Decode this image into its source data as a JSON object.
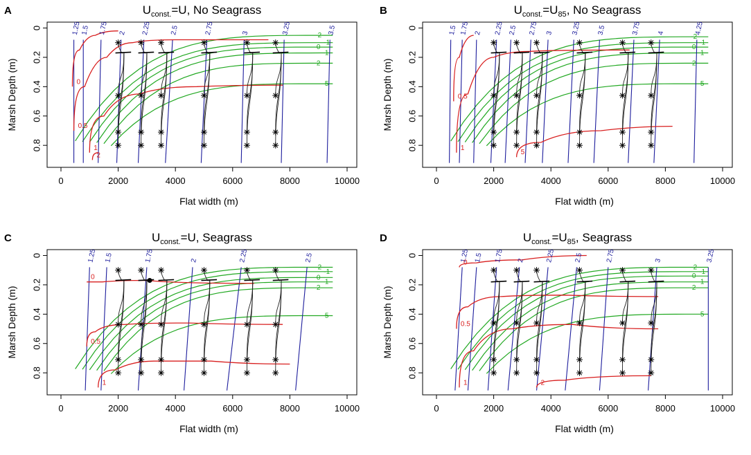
{
  "chart_data": [
    {
      "type": "line",
      "panel_letter": "A",
      "title_main": "U",
      "title_sub": "const.",
      "title_value": "=U",
      "title_value_sub": "",
      "title_overline": true,
      "title_suffix": ", No Seagrass",
      "xlabel": "Flat width (m)",
      "ylabel": "Marsh Depth (m)",
      "xlim": [
        0,
        10000
      ],
      "ylim": [
        0.9,
        0
      ],
      "xticks": [
        "0",
        "2000",
        "4000",
        "6000",
        "8000",
        "10000"
      ],
      "yticks": [
        "0",
        "0.2",
        "0.4",
        "0.6",
        "0.8"
      ],
      "xtick_values": [
        0,
        2000,
        4000,
        6000,
        8000,
        10000
      ],
      "ytick_values": [
        0,
        0.2,
        0.4,
        0.6,
        0.8
      ],
      "blue_contours": [
        {
          "label": "1.25",
          "top": 450,
          "bottom": 450
        },
        {
          "label": "1.5",
          "top": 780,
          "bottom": 780
        },
        {
          "label": "1.75",
          "top": 1400,
          "bottom": 1300
        },
        {
          "label": "2",
          "top": 2100,
          "bottom": 1950
        },
        {
          "label": "2.25",
          "top": 2900,
          "bottom": 2700
        },
        {
          "label": "2.5",
          "top": 3900,
          "bottom": 3650
        },
        {
          "label": "2.75",
          "top": 5100,
          "bottom": 4900
        },
        {
          "label": "3",
          "top": 6400,
          "bottom": 6300
        },
        {
          "label": "3.25",
          "top": 7800,
          "bottom": 7700
        },
        {
          "label": "3.5",
          "top": 9400,
          "bottom": 9300
        }
      ],
      "green_contours": [
        {
          "label": "-2",
          "depth": 0.05
        },
        {
          "label": "-1",
          "depth": 0.1
        },
        {
          "label": "0",
          "depth": 0.13
        },
        {
          "label": "1",
          "depth": 0.17
        },
        {
          "label": "2",
          "depth": 0.24
        },
        {
          "label": "5",
          "depth": 0.38
        }
      ],
      "red_contours": [
        {
          "label": "0",
          "points": [
            [
              400,
              0.4
            ],
            [
              900,
              0.15
            ],
            [
              1500,
              0.05
            ],
            [
              2500,
              0.02
            ]
          ]
        },
        {
          "label": "0.5",
          "points": [
            [
              450,
              0.7
            ],
            [
              1200,
              0.4
            ],
            [
              2000,
              0.2
            ],
            [
              3000,
              0.1
            ],
            [
              5000,
              0.08
            ],
            [
              9500,
              0.08
            ]
          ]
        },
        {
          "label": "1",
          "points": [
            [
              1000,
              0.85
            ],
            [
              2000,
              0.6
            ],
            [
              3500,
              0.45
            ],
            [
              6000,
              0.4
            ],
            [
              9500,
              0.39
            ]
          ]
        },
        {
          "label": "2",
          "points": [
            [
              1100,
              0.9
            ],
            [
              1500,
              0.85
            ]
          ]
        }
      ],
      "markers_x": [
        2000,
        2800,
        3500,
        5000,
        6500,
        7500
      ],
      "markers_y": [
        0.1,
        0.46,
        0.71,
        0.8
      ],
      "convergence_depth": 0.17,
      "highlight_point": null
    },
    {
      "type": "line",
      "panel_letter": "B",
      "title_main": "U",
      "title_sub": "const.",
      "title_value": "=U",
      "title_value_sub": "85",
      "title_overline": false,
      "title_suffix": ", No Seagrass",
      "xlabel": "Flat width (m)",
      "ylabel": "Marsh Depth (m)",
      "xlim": [
        0,
        10000
      ],
      "ylim": [
        0.9,
        0
      ],
      "xticks": [
        "0",
        "2000",
        "4000",
        "6000",
        "8000",
        "10000"
      ],
      "yticks": [
        "0",
        "0.2",
        "0.4",
        "0.6",
        "0.8"
      ],
      "xtick_values": [
        0,
        2000,
        4000,
        6000,
        8000,
        10000
      ],
      "ytick_values": [
        0,
        0.2,
        0.4,
        0.6,
        0.8
      ],
      "blue_contours": [
        {
          "label": "1.5",
          "top": 500,
          "bottom": 450
        },
        {
          "label": "1.75",
          "top": 900,
          "bottom": 800
        },
        {
          "label": "2",
          "top": 1400,
          "bottom": 1300
        },
        {
          "label": "2.25",
          "top": 2100,
          "bottom": 1900
        },
        {
          "label": "2.5",
          "top": 2600,
          "bottom": 2400
        },
        {
          "label": "2.75",
          "top": 3300,
          "bottom": 3100
        },
        {
          "label": "3",
          "top": 3900,
          "bottom": 3700
        },
        {
          "label": "3.25",
          "top": 4800,
          "bottom": 4600
        },
        {
          "label": "3.5",
          "top": 5700,
          "bottom": 5500
        },
        {
          "label": "3.75",
          "top": 6900,
          "bottom": 6700
        },
        {
          "label": "4",
          "top": 7800,
          "bottom": 7600
        },
        {
          "label": "4.25",
          "top": 9100,
          "bottom": 9000
        }
      ],
      "green_contours": [
        {
          "label": "-2",
          "depth": 0.06
        },
        {
          "label": "-1",
          "depth": 0.1
        },
        {
          "label": "0",
          "depth": 0.13
        },
        {
          "label": "1",
          "depth": 0.17
        },
        {
          "label": "2",
          "depth": 0.24
        },
        {
          "label": "5",
          "depth": 0.38
        }
      ],
      "red_contours": [
        {
          "label": "0.5",
          "points": [
            [
              600,
              0.5
            ],
            [
              1000,
              0.2
            ],
            [
              1600,
              0.05
            ]
          ]
        },
        {
          "label": "1",
          "points": [
            [
              700,
              0.85
            ],
            [
              1500,
              0.45
            ],
            [
              2500,
              0.2
            ],
            [
              4000,
              0.16
            ],
            [
              9500,
              0.15
            ]
          ]
        },
        {
          "label": "5",
          "points": [
            [
              2800,
              0.88
            ],
            [
              4500,
              0.78
            ],
            [
              7000,
              0.7
            ],
            [
              9500,
              0.67
            ]
          ]
        }
      ],
      "markers_x": [
        2000,
        2800,
        3500,
        5000,
        6500,
        7500
      ],
      "markers_y": [
        0.1,
        0.46,
        0.71,
        0.8
      ],
      "convergence_depth": 0.17,
      "highlight_point": null
    },
    {
      "type": "line",
      "panel_letter": "C",
      "title_main": "U",
      "title_sub": "const.",
      "title_value": "=U",
      "title_value_sub": "",
      "title_overline": true,
      "title_suffix": ", Seagrass",
      "xlabel": "Flat width (m)",
      "ylabel": "Marsh Depth (m)",
      "xlim": [
        0,
        10000
      ],
      "ylim": [
        0.9,
        0
      ],
      "xticks": [
        "0",
        "2000",
        "4000",
        "6000",
        "8000",
        "10000"
      ],
      "yticks": [
        "0",
        "0.2",
        "0.4",
        "0.6",
        "0.8"
      ],
      "xtick_values": [
        0,
        2000,
        4000,
        6000,
        8000,
        10000
      ],
      "ytick_values": [
        0,
        0.2,
        0.4,
        0.6,
        0.8
      ],
      "blue_contours": [
        {
          "label": "1.25",
          "top": 1000,
          "bottom": 850
        },
        {
          "label": "1.5",
          "top": 1600,
          "bottom": 1400
        },
        {
          "label": "1.75",
          "top": 3000,
          "bottom": 2700
        },
        {
          "label": "2",
          "top": 4600,
          "bottom": 4300
        },
        {
          "label": "2.25",
          "top": 6300,
          "bottom": 5800
        },
        {
          "label": "2.5",
          "top": 8600,
          "bottom": 8200
        }
      ],
      "green_contours": [
        {
          "label": "-2",
          "depth": 0.08
        },
        {
          "label": "-1",
          "depth": 0.11
        },
        {
          "label": "0",
          "depth": 0.15
        },
        {
          "label": "1",
          "depth": 0.18
        },
        {
          "label": "2",
          "depth": 0.22
        },
        {
          "label": "5",
          "depth": 0.41
        }
      ],
      "red_contours": [
        {
          "label": "0",
          "points": [
            [
              900,
              0.18
            ],
            [
              2000,
              0.18
            ],
            [
              4000,
              0.17
            ],
            [
              9500,
              0.19
            ]
          ]
        },
        {
          "label": "0.5",
          "points": [
            [
              900,
              0.62
            ],
            [
              1500,
              0.52
            ],
            [
              3000,
              0.47
            ],
            [
              6000,
              0.46
            ],
            [
              9500,
              0.47
            ]
          ]
        },
        {
          "label": "1",
          "points": [
            [
              1300,
              0.9
            ],
            [
              2500,
              0.78
            ],
            [
              4000,
              0.72
            ],
            [
              6500,
              0.72
            ],
            [
              9500,
              0.74
            ]
          ]
        }
      ],
      "markers_x": [
        2000,
        2800,
        3500,
        5000,
        6500,
        7500
      ],
      "markers_y": [
        0.1,
        0.47,
        0.71,
        0.8
      ],
      "convergence_depth": 0.17,
      "highlight_point": [
        3100,
        0.17
      ]
    },
    {
      "type": "line",
      "panel_letter": "D",
      "title_main": "U",
      "title_sub": "const.",
      "title_value": "=U",
      "title_value_sub": "85",
      "title_overline": false,
      "title_suffix": ", Seagrass",
      "xlabel": "Flat width (m)",
      "ylabel": "Marsh Depth (m)",
      "xlim": [
        0,
        10000
      ],
      "ylim": [
        0.9,
        0
      ],
      "xticks": [
        "0",
        "2000",
        "4000",
        "6000",
        "8000",
        "10000"
      ],
      "yticks": [
        "0",
        "0.2",
        "0.4",
        "0.6",
        "0.8"
      ],
      "xtick_values": [
        0,
        2000,
        4000,
        6000,
        8000,
        10000
      ],
      "ytick_values": [
        0,
        0.2,
        0.4,
        0.6,
        0.8
      ],
      "blue_contours": [
        {
          "label": "1.25",
          "top": 900,
          "bottom": 650
        },
        {
          "label": "1.5",
          "top": 1400,
          "bottom": 1100
        },
        {
          "label": "1.75",
          "top": 2100,
          "bottom": 1800
        },
        {
          "label": "2",
          "top": 2900,
          "bottom": 2500
        },
        {
          "label": "2.25",
          "top": 3900,
          "bottom": 3500
        },
        {
          "label": "2.5",
          "top": 4900,
          "bottom": 4500
        },
        {
          "label": "2.75",
          "top": 6000,
          "bottom": 5700
        },
        {
          "label": "3",
          "top": 7700,
          "bottom": 7400
        },
        {
          "label": "3.25",
          "top": 9500,
          "bottom": 9500
        }
      ],
      "green_contours": [
        {
          "label": "-2",
          "depth": 0.08
        },
        {
          "label": "-1",
          "depth": 0.11
        },
        {
          "label": "0",
          "depth": 0.14
        },
        {
          "label": "1",
          "depth": 0.18
        },
        {
          "label": "2",
          "depth": 0.22
        },
        {
          "label": "5",
          "depth": 0.4
        }
      ],
      "red_contours": [
        {
          "label": "0",
          "points": [
            [
              800,
              0.08
            ],
            [
              2000,
              0.05
            ],
            [
              4000,
              0.03
            ],
            [
              6500,
              0.0
            ]
          ]
        },
        {
          "label": "0.5",
          "points": [
            [
              700,
              0.5
            ],
            [
              1500,
              0.35
            ],
            [
              3000,
              0.28
            ],
            [
              6000,
              0.27
            ],
            [
              9500,
              0.28
            ]
          ]
        },
        {
          "label": "1",
          "points": [
            [
              800,
              0.9
            ],
            [
              1800,
              0.65
            ],
            [
              3500,
              0.5
            ],
            [
              6000,
              0.47
            ],
            [
              9500,
              0.5
            ]
          ]
        },
        {
          "label": "2",
          "points": [
            [
              3500,
              0.9
            ],
            [
              5500,
              0.85
            ],
            [
              9500,
              0.82
            ]
          ]
        }
      ],
      "markers_x": [
        2000,
        2800,
        3500,
        5000,
        6500,
        7500
      ],
      "markers_y": [
        0.1,
        0.46,
        0.71,
        0.8
      ],
      "convergence_depth": 0.18,
      "highlight_point": null
    }
  ]
}
